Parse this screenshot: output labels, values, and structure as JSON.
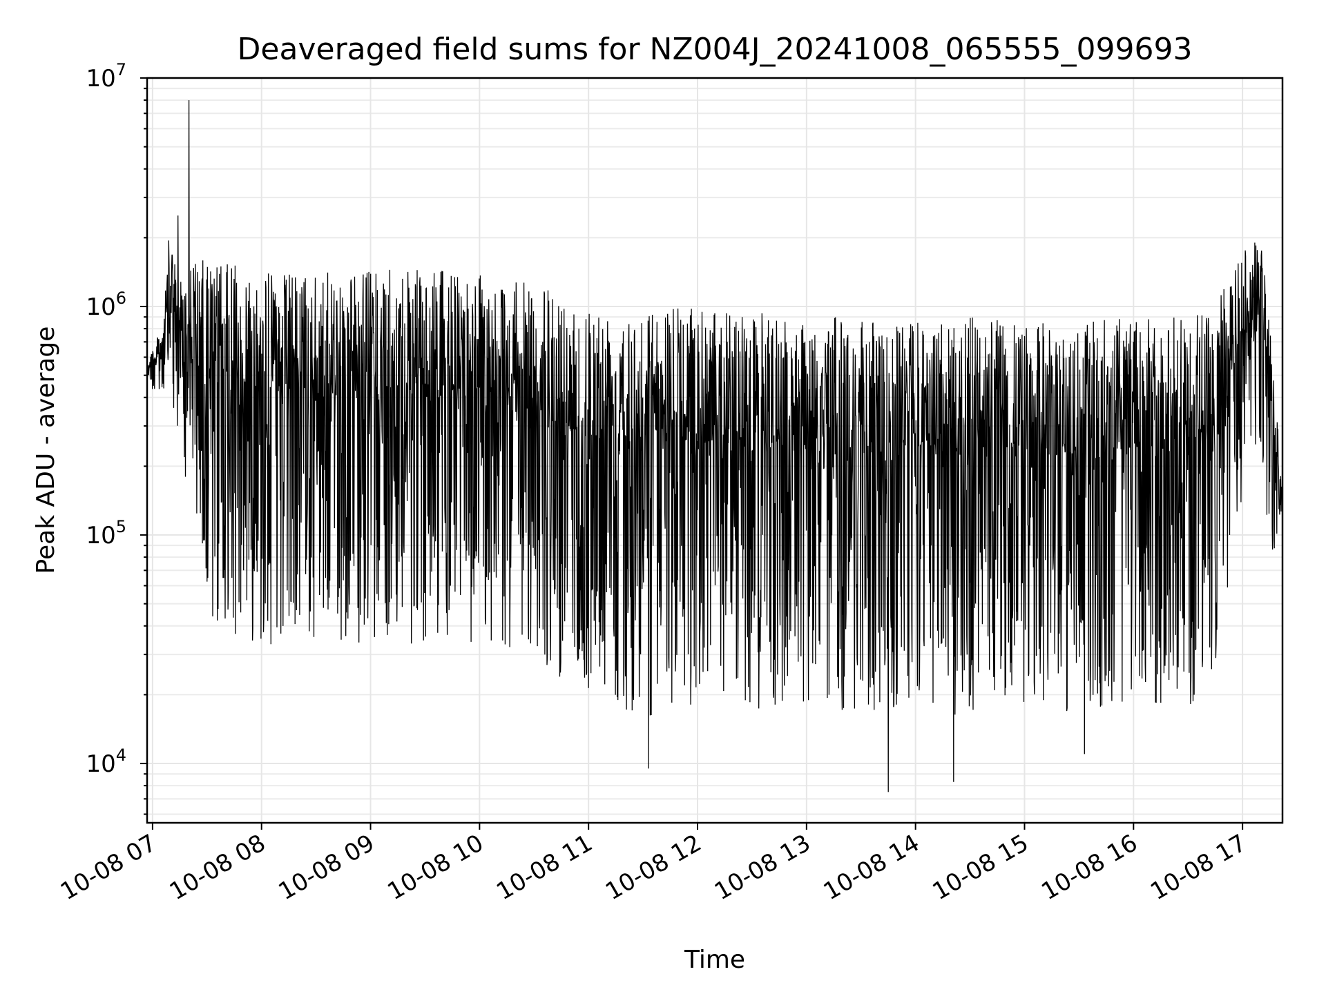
{
  "chart_data": {
    "type": "line",
    "title": "Deaveraged field sums for NZ004J_20241008_065555_099693",
    "xlabel": "Time",
    "ylabel": "Peak ADU - average",
    "yscale": "log",
    "ylim": [
      5500,
      10000000
    ],
    "xlim": [
      "2024-10-08 06:57",
      "2024-10-08 17:22"
    ],
    "grid": "major and minor, both axes",
    "line_color": "#000000",
    "x_ticks": [
      "10-08 07",
      "10-08 08",
      "10-08 09",
      "10-08 10",
      "10-08 11",
      "10-08 12",
      "10-08 13",
      "10-08 14",
      "10-08 15",
      "10-08 16",
      "10-08 17"
    ],
    "y_ticks": [
      {
        "value": 10000,
        "base": "10",
        "exp": "4"
      },
      {
        "value": 100000,
        "base": "10",
        "exp": "5"
      },
      {
        "value": 1000000,
        "base": "10",
        "exp": "6"
      },
      {
        "value": 10000000,
        "base": "10",
        "exp": "7"
      }
    ],
    "series": [
      {
        "upper_envelope": {
          "x": [
            "2024-10-08 06:57",
            "2024-10-08 07:05",
            "2024-10-08 07:10",
            "2024-10-08 07:13",
            "2024-10-08 07:20",
            "2024-10-08 07:30",
            "2024-10-08 08:00",
            "2024-10-08 08:30",
            "2024-10-08 09:00",
            "2024-10-08 09:30",
            "2024-10-08 10:00",
            "2024-10-08 10:30",
            "2024-10-08 11:00",
            "2024-10-08 11:30",
            "2024-10-08 12:00",
            "2024-10-08 12:30",
            "2024-10-08 13:00",
            "2024-10-08 13:30",
            "2024-10-08 14:00",
            "2024-10-08 14:30",
            "2024-10-08 15:00",
            "2024-10-08 15:30",
            "2024-10-08 16:00",
            "2024-10-08 16:30",
            "2024-10-08 16:45",
            "2024-10-08 17:00",
            "2024-10-08 17:10",
            "2024-10-08 17:15",
            "2024-10-08 17:22"
          ],
          "y": [
            600000,
            800000,
            2500000,
            1300000,
            1600000,
            1600000,
            1450000,
            1400000,
            1450000,
            1450000,
            1400000,
            1250000,
            1050000,
            1000000,
            1000000,
            950000,
            900000,
            900000,
            850000,
            900000,
            850000,
            850000,
            900000,
            900000,
            1000000,
            1800000,
            2000000,
            1000000,
            150000
          ]
        },
        "lower_envelope": {
          "x": [
            "2024-10-08 06:57",
            "2024-10-08 07:10",
            "2024-10-08 07:20",
            "2024-10-08 07:30",
            "2024-10-08 08:00",
            "2024-10-08 08:30",
            "2024-10-08 09:00",
            "2024-10-08 09:30",
            "2024-10-08 10:00",
            "2024-10-08 10:30",
            "2024-10-08 11:00",
            "2024-10-08 11:30",
            "2024-10-08 12:00",
            "2024-10-08 12:30",
            "2024-10-08 13:00",
            "2024-10-08 13:30",
            "2024-10-08 14:00",
            "2024-10-08 14:30",
            "2024-10-08 15:00",
            "2024-10-08 15:30",
            "2024-10-08 16:00",
            "2024-10-08 16:30",
            "2024-10-08 16:45",
            "2024-10-08 17:00",
            "2024-10-08 17:10",
            "2024-10-08 17:15",
            "2024-10-08 17:22"
          ],
          "y": [
            450000,
            350000,
            150000,
            40000,
            33000,
            32000,
            34000,
            33000,
            32000,
            28000,
            20000,
            16000,
            17000,
            16000,
            18000,
            16000,
            17000,
            16000,
            18000,
            16000,
            18000,
            16000,
            27000,
            150000,
            250000,
            80000,
            100000
          ]
        },
        "spikes": [
          {
            "x": "2024-10-08 07:20",
            "y": 8000000
          },
          {
            "x": "2024-10-08 07:14",
            "y": 2500000
          },
          {
            "x": "2024-10-08 11:33",
            "y": 9500
          },
          {
            "x": "2024-10-08 13:45",
            "y": 7500
          },
          {
            "x": "2024-10-08 14:21",
            "y": 8300
          },
          {
            "x": "2024-10-08 15:33",
            "y": 11000
          }
        ]
      }
    ]
  }
}
